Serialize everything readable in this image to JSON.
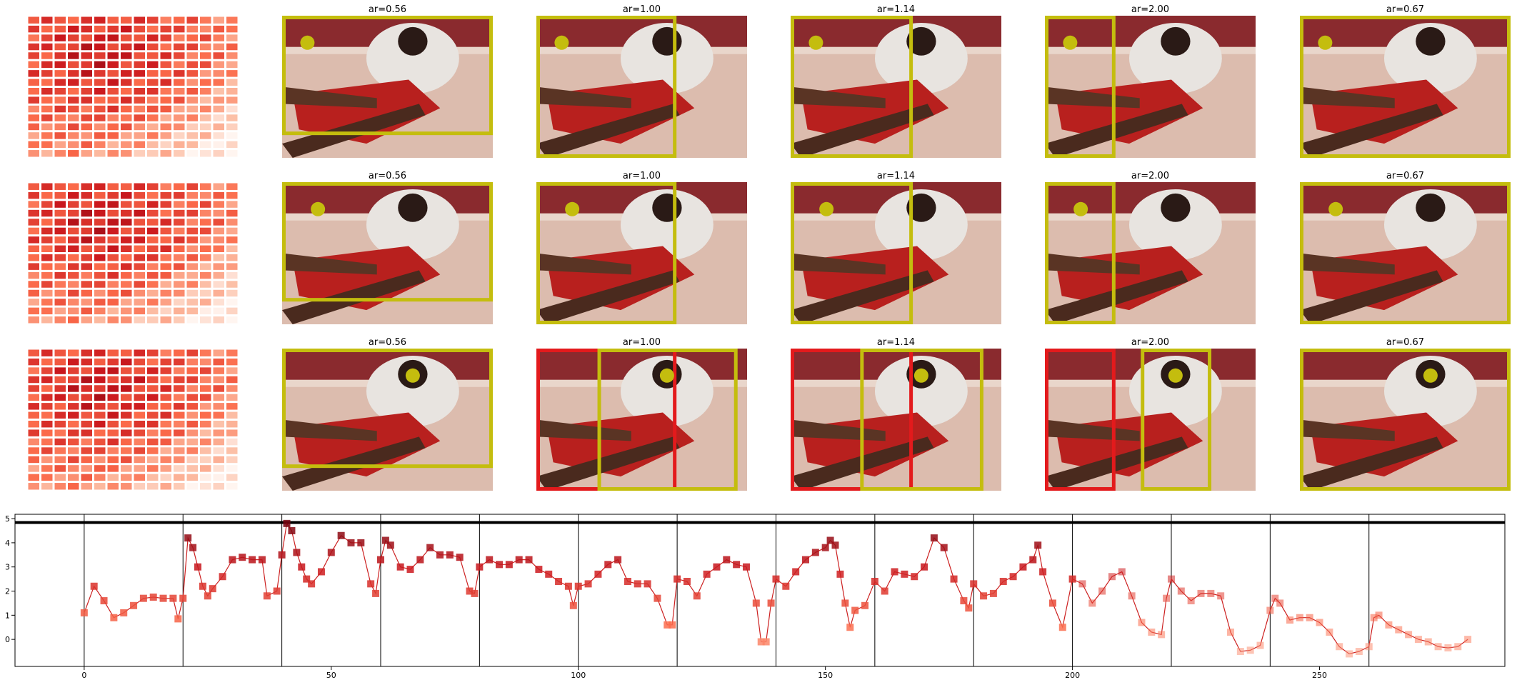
{
  "panels": {
    "titles": [
      [
        "ar=0.56",
        "ar=1.00",
        "ar=1.14",
        "ar=2.00",
        "ar=0.67"
      ],
      [
        "ar=0.56",
        "ar=1.00",
        "ar=1.14",
        "ar=2.00",
        "ar=0.67"
      ],
      [
        "ar=0.56",
        "ar=1.00",
        "ar=1.14",
        "ar=2.00",
        "ar=0.67"
      ]
    ]
  },
  "chart_data": {
    "type": "line",
    "x": [
      0,
      2,
      4,
      6,
      8,
      10,
      12,
      14,
      16,
      18,
      19,
      20,
      21,
      22,
      23,
      24,
      25,
      26,
      28,
      30,
      32,
      34,
      36,
      37,
      39,
      40,
      41,
      42,
      43,
      44,
      45,
      46,
      48,
      50,
      52,
      54,
      56,
      58,
      59,
      60,
      61,
      62,
      64,
      66,
      68,
      70,
      72,
      74,
      76,
      78,
      79,
      80,
      82,
      84,
      86,
      88,
      90,
      92,
      94,
      96,
      98,
      99,
      100,
      102,
      104,
      106,
      108,
      110,
      112,
      114,
      116,
      118,
      119,
      120,
      122,
      124,
      126,
      128,
      130,
      132,
      134,
      136,
      137,
      138,
      139,
      140,
      142,
      144,
      146,
      148,
      150,
      151,
      152,
      153,
      154,
      155,
      156,
      158,
      160,
      162,
      164,
      166,
      168,
      170,
      172,
      174,
      176,
      178,
      179,
      180,
      182,
      184,
      186,
      188,
      190,
      192,
      193,
      194,
      196,
      198,
      200,
      202,
      204,
      206,
      208,
      210,
      212,
      214,
      216,
      218,
      219,
      220,
      222,
      224,
      226,
      228,
      230,
      232,
      234,
      236,
      238,
      240,
      241,
      242,
      244,
      246,
      248,
      250,
      252,
      254,
      256,
      258,
      260,
      261,
      262,
      264,
      266,
      268,
      270,
      272,
      274,
      276,
      278,
      280
    ],
    "series": [
      {
        "color": "#cc2020",
        "values": [
          1.1,
          2.2,
          1.6,
          0.9,
          1.1,
          1.4,
          1.7,
          1.75,
          1.7,
          1.7,
          0.85,
          1.7,
          4.2,
          3.8,
          3.0,
          2.2,
          1.8,
          2.1,
          2.6,
          3.3,
          3.4,
          3.3,
          3.3,
          1.8,
          2.0,
          3.5,
          4.8,
          4.5,
          3.6,
          3.0,
          2.5,
          2.3,
          2.8,
          3.6,
          4.3,
          4.0,
          4.0,
          2.3,
          1.9,
          3.3,
          4.1,
          3.9,
          3.0,
          2.9,
          3.3,
          3.8,
          3.5,
          3.5,
          3.4,
          2.0,
          1.9,
          3.0,
          3.3,
          3.1,
          3.1,
          3.3,
          3.3,
          2.9,
          2.7,
          2.4,
          2.2,
          1.4,
          2.2,
          2.3,
          2.7,
          3.1,
          3.3,
          2.4,
          2.3,
          2.3,
          1.7,
          0.6,
          0.6,
          2.5,
          2.4,
          1.8,
          2.7,
          3.0,
          3.3,
          3.1,
          3.0,
          1.5,
          -0.1,
          -0.1,
          1.5,
          2.5,
          2.2,
          2.8,
          3.3,
          3.6,
          3.8,
          4.1,
          3.9,
          2.7,
          1.5,
          0.5,
          1.2,
          1.4,
          2.4,
          2.0,
          2.8,
          2.7,
          2.6,
          3.0,
          4.2,
          3.8,
          2.5,
          1.6,
          1.3,
          2.3,
          1.8,
          1.9,
          2.4,
          2.6,
          3.0,
          3.3,
          3.9,
          2.8,
          1.5,
          0.5,
          2.5,
          2.3,
          1.5,
          2.0,
          2.6,
          2.8,
          1.8,
          0.7,
          0.3,
          0.2,
          1.7,
          2.5,
          2.0,
          1.6,
          1.9,
          1.9,
          1.8,
          0.3,
          -0.5,
          -0.45,
          -0.25,
          1.2,
          1.7,
          1.5,
          0.8,
          0.9,
          0.9,
          0.7,
          0.3,
          -0.3,
          -0.6,
          -0.5,
          -0.3,
          0.9,
          1.0,
          0.6,
          0.4,
          0.2,
          0.0,
          -0.1,
          -0.3,
          -0.35,
          -0.3,
          0.0
        ]
      }
    ],
    "xlim": [
      -14,
      287.5
    ],
    "ylim": [
      -1.12,
      5.18
    ],
    "xticks": [
      0,
      50,
      100,
      150,
      200,
      250
    ],
    "yticks": [
      0,
      1,
      2,
      3,
      4,
      5
    ],
    "vlines": [
      0,
      20,
      40,
      60,
      80,
      100,
      120,
      140,
      160,
      180,
      200,
      220,
      240,
      260
    ],
    "hline": 4.84
  }
}
